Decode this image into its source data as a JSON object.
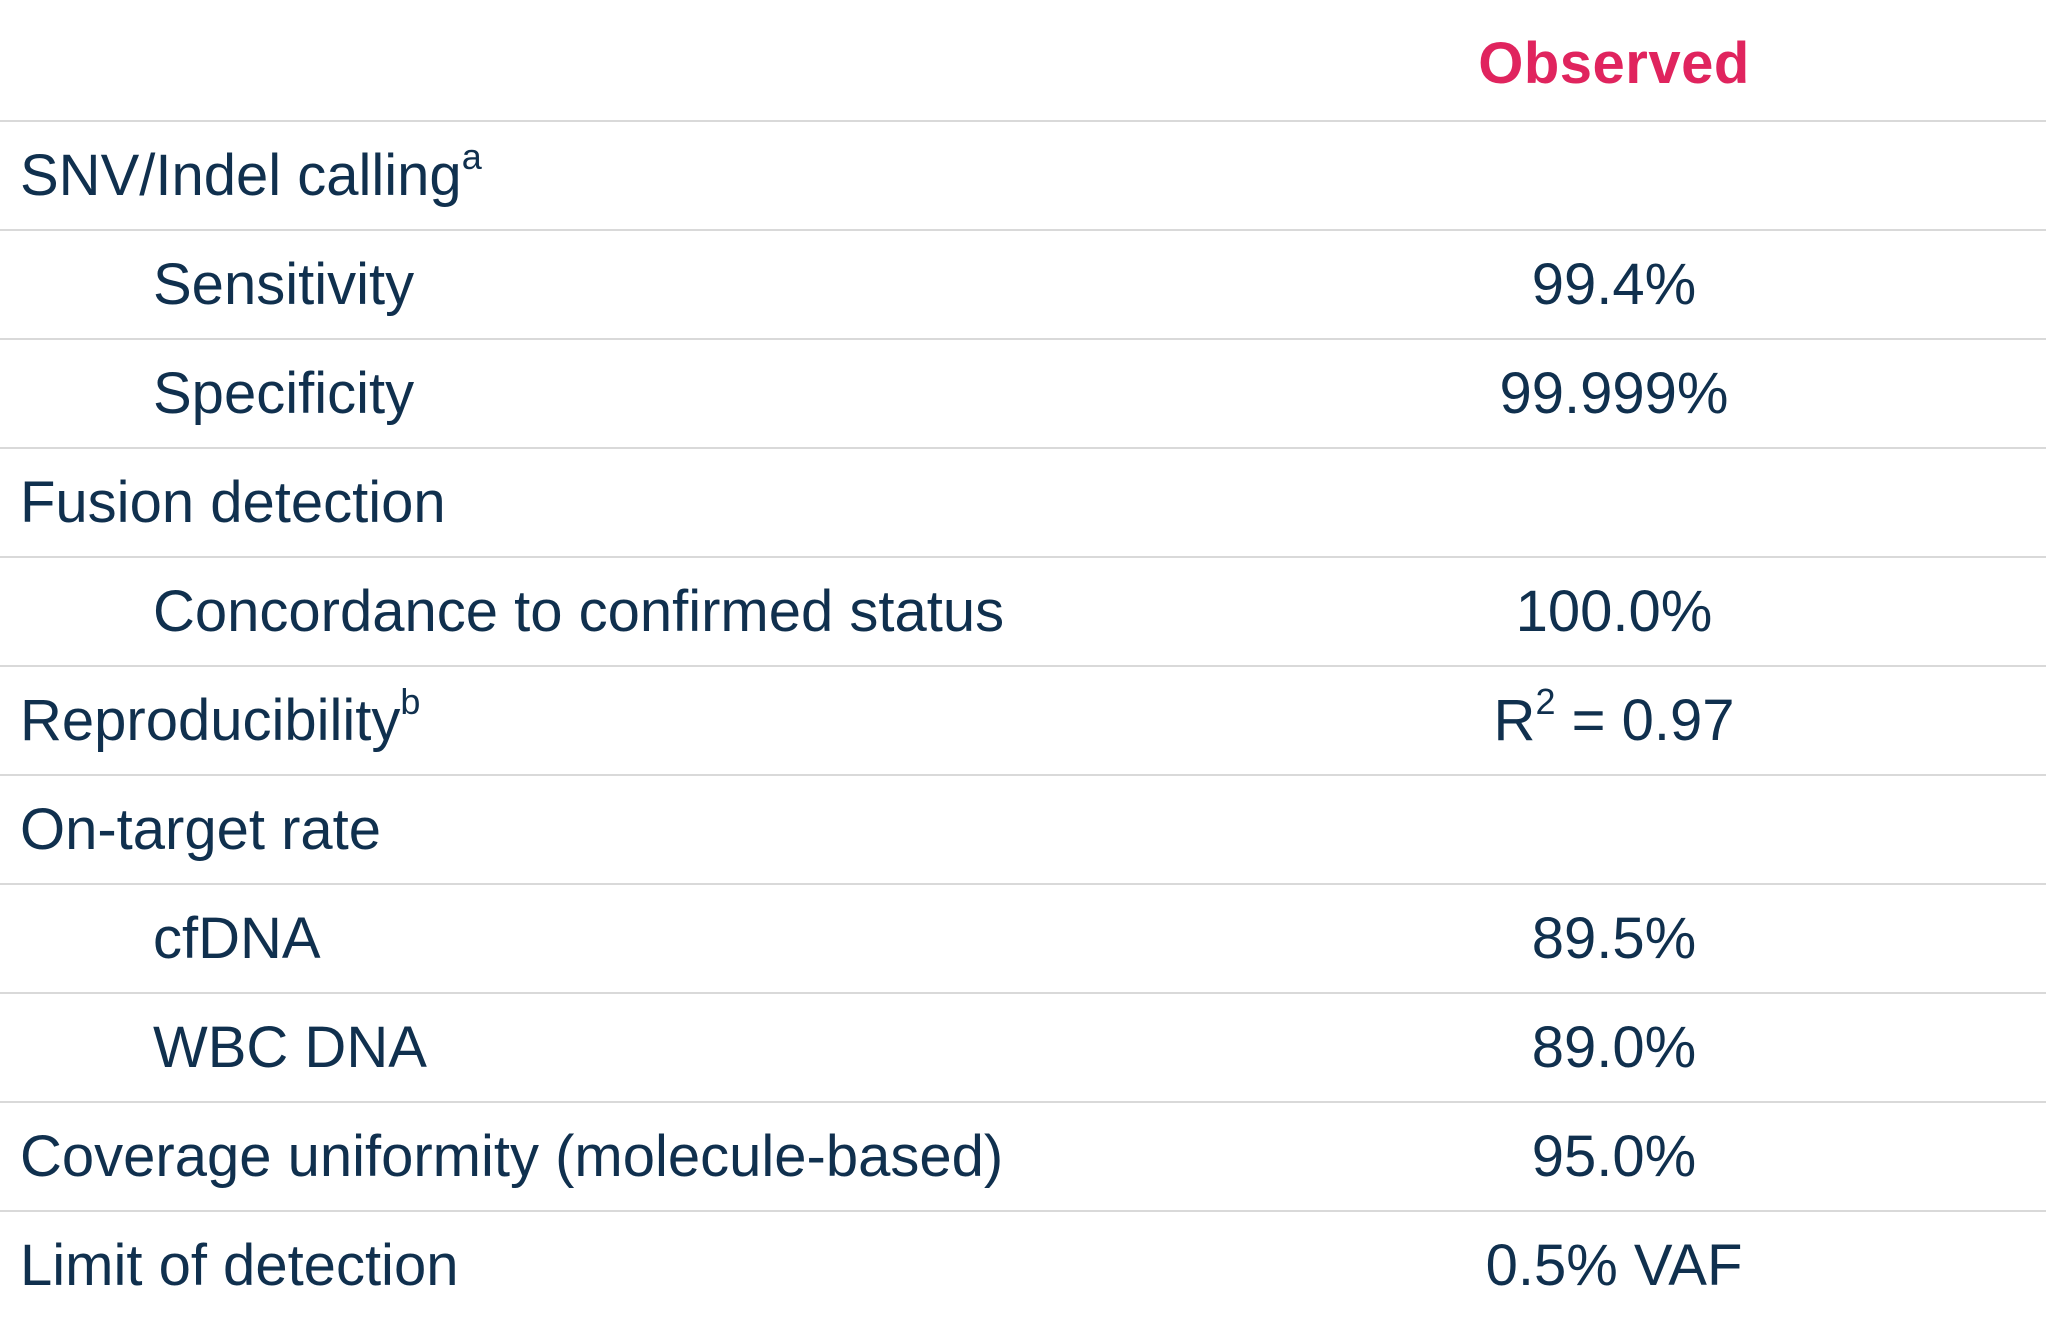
{
  "header": {
    "observed_label": "Observed"
  },
  "rows": [
    {
      "label": "SNV/Indel calling",
      "sup": "a",
      "value": "",
      "indent": false
    },
    {
      "label": "Sensitivity",
      "sup": "",
      "value": "99.4%",
      "indent": true
    },
    {
      "label": "Specificity",
      "sup": "",
      "value": "99.999%",
      "indent": true
    },
    {
      "label": "Fusion detection",
      "sup": "",
      "value": "",
      "indent": false
    },
    {
      "label": "Concordance to confirmed status",
      "sup": "",
      "value": "100.0%",
      "indent": true
    },
    {
      "label": "Reproducibility",
      "sup": "b",
      "value_prefix": "R",
      "value_sup": "2",
      "value_suffix": " = 0.97",
      "indent": false
    },
    {
      "label": "On-target rate",
      "sup": "",
      "value": "",
      "indent": false
    },
    {
      "label": "cfDNA",
      "sup": "",
      "value": "89.5%",
      "indent": true
    },
    {
      "label": "WBC DNA",
      "sup": "",
      "value": "89.0%",
      "indent": true
    },
    {
      "label": "Coverage uniformity (molecule-based)",
      "sup": "",
      "value": "95.0%",
      "indent": false
    },
    {
      "label": "Limit of detection",
      "sup": "",
      "value": "0.5% VAF",
      "indent": false
    }
  ]
}
